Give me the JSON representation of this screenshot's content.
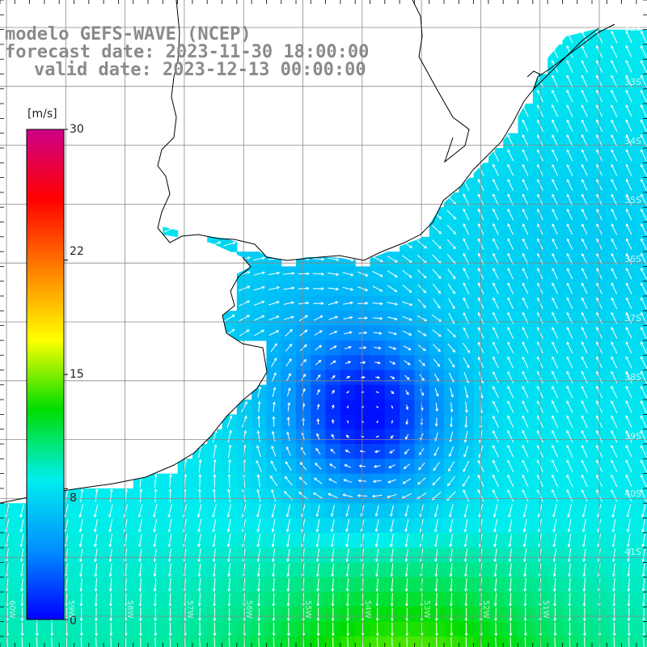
{
  "title": {
    "line1": "modelo GEFS-WAVE (NCEP)",
    "line2": "forecast date: 2023-11-30 18:00:00",
    "line3": "valid date: 2023-12-13 00:00:00"
  },
  "colorbar": {
    "unit": "[m/s]",
    "ticks": [
      "30",
      "22",
      "15",
      "8",
      "0"
    ],
    "tick_values": [
      30,
      22,
      15,
      8,
      0
    ],
    "min": 0,
    "max": 30,
    "colors": [
      "#0000ff",
      "#0090ff",
      "#00eeee",
      "#00dd00",
      "#ffff00",
      "#ff8000",
      "#ff0000",
      "#cc0088"
    ]
  },
  "lat_labels": [
    "32S",
    "33S",
    "34S",
    "35S",
    "36S",
    "37S",
    "38S",
    "39S",
    "40S",
    "41S"
  ],
  "lon_labels": [
    "60W",
    "59W",
    "58W",
    "57W",
    "56W",
    "55W",
    "54W",
    "53W",
    "52W",
    "51W"
  ],
  "map_colors": {
    "land": "#ffffff",
    "coast": "#000000",
    "grid": "#888888",
    "arrow": "#ffffff"
  }
}
